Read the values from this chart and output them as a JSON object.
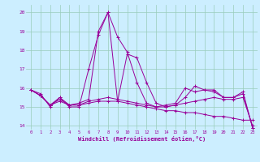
{
  "xlabel": "Windchill (Refroidissement éolien,°C)",
  "background_color": "#cceeff",
  "grid_color": "#99ccbb",
  "line_color": "#990099",
  "xlim": [
    -0.5,
    23.5
  ],
  "ylim": [
    13.8,
    20.4
  ],
  "yticks": [
    14,
    15,
    16,
    17,
    18,
    19,
    20
  ],
  "xticks": [
    0,
    1,
    2,
    3,
    4,
    5,
    6,
    7,
    8,
    9,
    10,
    11,
    12,
    13,
    14,
    15,
    16,
    17,
    18,
    19,
    20,
    21,
    22,
    23
  ],
  "series": [
    [
      15.9,
      15.7,
      15.0,
      15.5,
      15.0,
      15.0,
      17.0,
      18.8,
      20.0,
      15.3,
      17.8,
      17.6,
      16.3,
      15.2,
      15.0,
      15.1,
      15.5,
      16.1,
      15.9,
      15.9,
      15.5,
      15.5,
      15.8,
      13.9
    ],
    [
      15.9,
      15.6,
      15.1,
      15.3,
      15.1,
      15.1,
      15.2,
      15.3,
      15.3,
      15.3,
      15.2,
      15.1,
      15.0,
      14.9,
      14.8,
      14.8,
      14.7,
      14.7,
      14.6,
      14.5,
      14.5,
      14.4,
      14.3,
      14.3
    ],
    [
      15.9,
      15.6,
      15.1,
      15.4,
      15.1,
      15.1,
      15.3,
      15.4,
      15.5,
      15.4,
      15.3,
      15.2,
      15.1,
      15.0,
      15.0,
      15.1,
      15.2,
      15.3,
      15.4,
      15.5,
      15.4,
      15.4,
      15.5,
      14.0
    ],
    [
      15.9,
      15.6,
      15.1,
      15.5,
      15.1,
      15.2,
      15.4,
      19.0,
      20.0,
      18.7,
      17.9,
      16.3,
      15.2,
      15.0,
      15.1,
      15.2,
      16.0,
      15.8,
      15.9,
      15.8,
      15.5,
      15.5,
      15.7,
      13.9
    ]
  ]
}
